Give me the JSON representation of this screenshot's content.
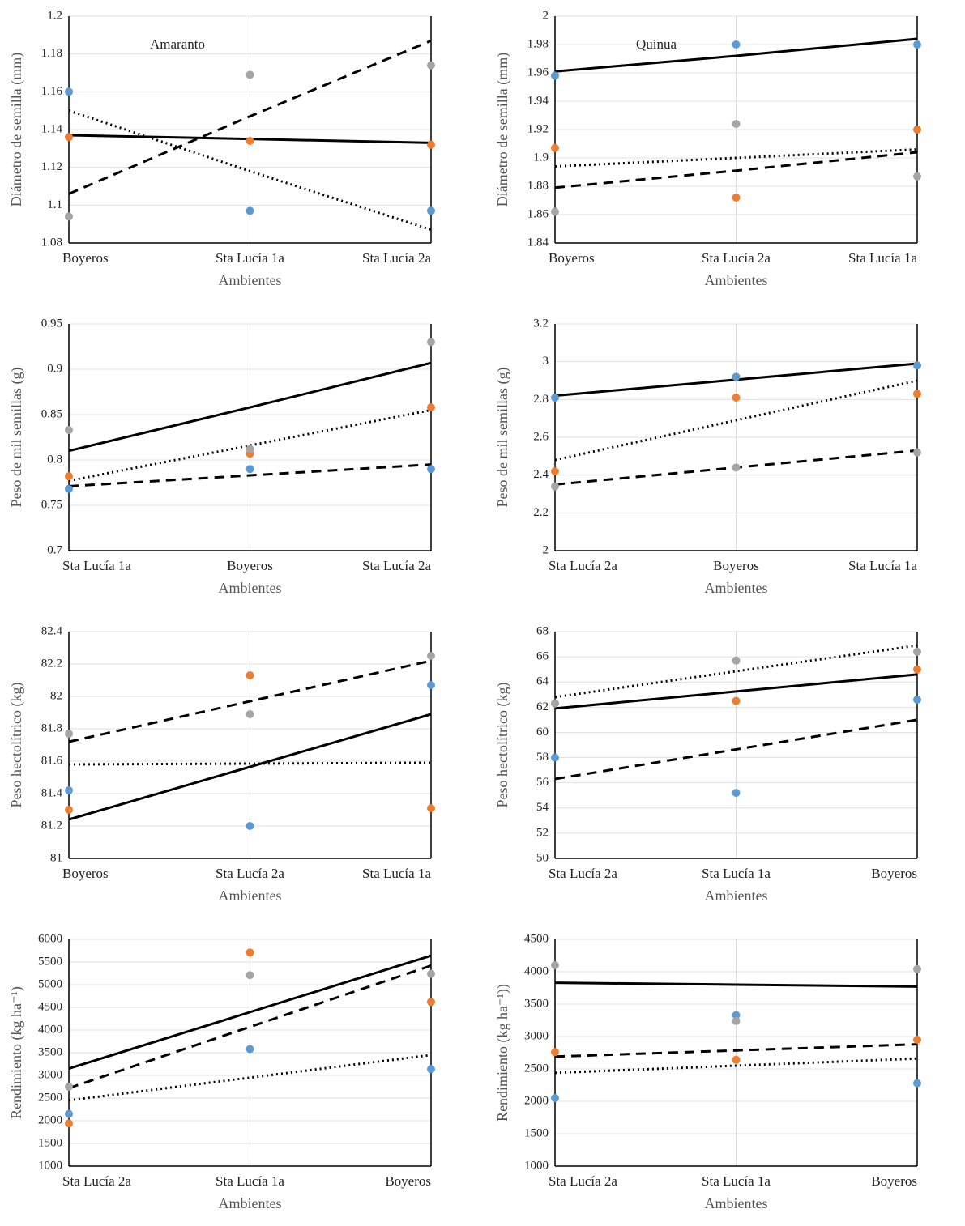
{
  "chart_data": [
    {
      "type": "scatter",
      "annotation": "Amaranto",
      "y_label": "Diámetro de semilla (mm)",
      "x_label": "Ambientes",
      "categories": [
        "Boyeros",
        "Sta Lucía 1a",
        "Sta Lucía 2a"
      ],
      "ylim": [
        1.08,
        1.2
      ],
      "yticks": [
        1.08,
        1.1,
        1.12,
        1.14,
        1.16,
        1.18,
        1.2
      ],
      "series": [
        {
          "color": "#5b9bd5",
          "values": [
            1.16,
            1.097,
            1.097
          ]
        },
        {
          "color": "#ed7d31",
          "values": [
            1.136,
            1.134,
            1.132
          ]
        },
        {
          "color": "#a5a5a5",
          "values": [
            1.094,
            1.169,
            1.174
          ]
        }
      ],
      "lines": [
        {
          "color": "#000000",
          "style": "solid",
          "values": [
            1.137,
            1.135,
            1.133
          ]
        },
        {
          "color": "#000000",
          "style": "dashed",
          "values": [
            1.106,
            1.147,
            1.187
          ]
        },
        {
          "color": "#000000",
          "style": "dotted",
          "values": [
            1.15,
            1.118,
            1.087
          ]
        }
      ]
    },
    {
      "type": "scatter",
      "annotation": "Quinua",
      "y_label": "Diámetro de semilla (mm)",
      "x_label": "Ambientes",
      "categories": [
        "Boyeros",
        "Sta Lucía 2a",
        "Sta Lucía 1a"
      ],
      "ylim": [
        1.84,
        2
      ],
      "yticks": [
        1.84,
        1.86,
        1.88,
        1.9,
        1.92,
        1.94,
        1.96,
        1.98,
        2
      ],
      "series": [
        {
          "color": "#5b9bd5",
          "values": [
            1.958,
            1.98,
            1.98
          ]
        },
        {
          "color": "#ed7d31",
          "values": [
            1.907,
            1.872,
            1.92
          ]
        },
        {
          "color": "#a5a5a5",
          "values": [
            1.862,
            1.924,
            1.887
          ]
        }
      ],
      "lines": [
        {
          "color": "#000000",
          "style": "solid",
          "values": [
            1.961,
            1.972,
            1.984
          ]
        },
        {
          "color": "#000000",
          "style": "dashed",
          "values": [
            1.879,
            1.891,
            1.904
          ]
        },
        {
          "color": "#000000",
          "style": "dotted",
          "values": [
            1.894,
            1.9,
            1.906
          ]
        }
      ]
    },
    {
      "type": "scatter",
      "y_label": "Peso de mil semillas (g)",
      "x_label": "Ambientes",
      "categories": [
        "Sta Lucía 1a",
        "Boyeros",
        "Sta Lucía 2a"
      ],
      "ylim": [
        0.7,
        0.95
      ],
      "yticks": [
        0.7,
        0.75,
        0.8,
        0.85,
        0.9,
        0.95
      ],
      "series": [
        {
          "color": "#5b9bd5",
          "values": [
            0.768,
            0.79,
            0.79
          ]
        },
        {
          "color": "#ed7d31",
          "values": [
            0.782,
            0.807,
            0.858
          ]
        },
        {
          "color": "#a5a5a5",
          "values": [
            0.833,
            0.812,
            0.93
          ]
        }
      ],
      "lines": [
        {
          "color": "#000000",
          "style": "solid",
          "values": [
            0.81,
            0.858,
            0.907
          ]
        },
        {
          "color": "#000000",
          "style": "dashed",
          "values": [
            0.771,
            0.783,
            0.795
          ]
        },
        {
          "color": "#000000",
          "style": "dotted",
          "values": [
            0.777,
            0.816,
            0.855
          ]
        }
      ]
    },
    {
      "type": "scatter",
      "y_label": "Peso de mil semillas (g)",
      "x_label": "Ambientes",
      "categories": [
        "Sta Lucía 2a",
        "Boyeros",
        "Sta Lucía 1a"
      ],
      "ylim": [
        2,
        3.2
      ],
      "yticks": [
        2,
        2.2,
        2.4,
        2.6,
        2.8,
        3,
        3.2
      ],
      "series": [
        {
          "color": "#5b9bd5",
          "values": [
            2.81,
            2.92,
            2.98
          ]
        },
        {
          "color": "#ed7d31",
          "values": [
            2.42,
            2.81,
            2.83
          ]
        },
        {
          "color": "#a5a5a5",
          "values": [
            2.34,
            2.44,
            2.52
          ]
        }
      ],
      "lines": [
        {
          "color": "#000000",
          "style": "solid",
          "values": [
            2.82,
            2.905,
            2.99
          ]
        },
        {
          "color": "#000000",
          "style": "dashed",
          "values": [
            2.35,
            2.44,
            2.53
          ]
        },
        {
          "color": "#000000",
          "style": "dotted",
          "values": [
            2.48,
            2.69,
            2.9
          ]
        }
      ]
    },
    {
      "type": "scatter",
      "y_label": "Peso hectolítrico (kg)",
      "x_label": "Ambientes",
      "categories": [
        "Boyeros",
        "Sta Lucía 2a",
        "Sta Lucía 1a"
      ],
      "ylim": [
        81,
        82.4
      ],
      "yticks": [
        81,
        81.2,
        81.4,
        81.6,
        81.8,
        82,
        82.2,
        82.4
      ],
      "series": [
        {
          "color": "#5b9bd5",
          "values": [
            81.42,
            81.2,
            82.07
          ]
        },
        {
          "color": "#ed7d31",
          "values": [
            81.3,
            82.13,
            81.31
          ]
        },
        {
          "color": "#a5a5a5",
          "values": [
            81.77,
            81.89,
            82.25
          ]
        }
      ],
      "lines": [
        {
          "color": "#000000",
          "style": "solid",
          "values": [
            81.24,
            81.565,
            81.89
          ]
        },
        {
          "color": "#000000",
          "style": "dashed",
          "values": [
            81.72,
            81.97,
            82.22
          ]
        },
        {
          "color": "#000000",
          "style": "dotted",
          "values": [
            81.58,
            81.585,
            81.59
          ]
        }
      ]
    },
    {
      "type": "scatter",
      "y_label": "Peso hectolítrico (kg)",
      "x_label": "Ambientes",
      "categories": [
        "Sta Lucía 2a",
        "Sta Lucía 1a",
        "Boyeros"
      ],
      "ylim": [
        50,
        68
      ],
      "yticks": [
        50,
        52,
        54,
        56,
        58,
        60,
        62,
        64,
        66,
        68
      ],
      "series": [
        {
          "color": "#5b9bd5",
          "values": [
            58,
            55.2,
            62.6
          ]
        },
        {
          "color": "#ed7d31",
          "values": [
            62.3,
            62.5,
            65
          ]
        },
        {
          "color": "#a5a5a5",
          "values": [
            62.3,
            65.7,
            66.4
          ]
        }
      ],
      "lines": [
        {
          "color": "#000000",
          "style": "solid",
          "values": [
            61.9,
            63.25,
            64.6
          ]
        },
        {
          "color": "#000000",
          "style": "dashed",
          "values": [
            56.3,
            58.65,
            61
          ]
        },
        {
          "color": "#000000",
          "style": "dotted",
          "values": [
            62.8,
            64.85,
            66.9
          ]
        }
      ]
    },
    {
      "type": "scatter",
      "y_label": "Rendimiento (kg ha⁻¹)",
      "x_label": "Ambientes",
      "categories": [
        "Sta Lucía 2a",
        "Sta Lucía 1a",
        "Boyeros"
      ],
      "ylim": [
        1000,
        6000
      ],
      "yticks": [
        1000,
        1500,
        2000,
        2500,
        3000,
        3500,
        4000,
        4500,
        5000,
        5500,
        6000
      ],
      "series": [
        {
          "color": "#5b9bd5",
          "values": [
            2150,
            3580,
            3140
          ]
        },
        {
          "color": "#ed7d31",
          "values": [
            1940,
            5710,
            4620
          ]
        },
        {
          "color": "#a5a5a5",
          "values": [
            2750,
            5210,
            5240
          ]
        }
      ],
      "lines": [
        {
          "color": "#000000",
          "style": "solid",
          "values": [
            3150,
            4395,
            5640
          ]
        },
        {
          "color": "#000000",
          "style": "dashed",
          "values": [
            2720,
            4070,
            5420
          ]
        },
        {
          "color": "#000000",
          "style": "dotted",
          "values": [
            2450,
            2950,
            3450
          ]
        }
      ]
    },
    {
      "type": "scatter",
      "y_label": "Rendimiento (kg ha⁻¹))",
      "x_label": "Ambientes",
      "categories": [
        "Sta Lucía 2a",
        "Sta Lucía 1a",
        "Boyeros"
      ],
      "ylim": [
        1000,
        4500
      ],
      "yticks": [
        1000,
        1500,
        2000,
        2500,
        3000,
        3500,
        4000,
        4500
      ],
      "series": [
        {
          "color": "#5b9bd5",
          "values": [
            2050,
            3330,
            2280
          ]
        },
        {
          "color": "#ed7d31",
          "values": [
            2760,
            2640,
            2950
          ]
        },
        {
          "color": "#a5a5a5",
          "values": [
            4100,
            3240,
            4040
          ]
        }
      ],
      "lines": [
        {
          "color": "#000000",
          "style": "solid",
          "values": [
            3830,
            3800,
            3770
          ]
        },
        {
          "color": "#000000",
          "style": "dashed",
          "values": [
            2690,
            2785,
            2880
          ]
        },
        {
          "color": "#000000",
          "style": "dotted",
          "values": [
            2440,
            2550,
            2660
          ]
        }
      ]
    }
  ]
}
